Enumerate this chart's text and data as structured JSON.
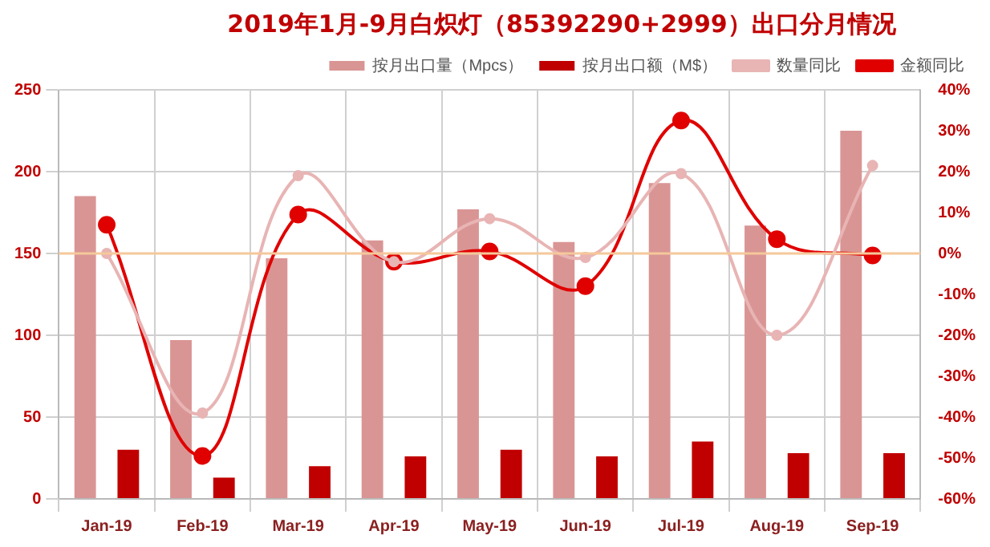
{
  "chart_data": {
    "type": "bar",
    "title": "2019年1月-9月白炽灯（85392290+2999）出口分月情况",
    "categories": [
      "Jan-19",
      "Feb-19",
      "Mar-19",
      "Apr-19",
      "May-19",
      "Jun-19",
      "Jul-19",
      "Aug-19",
      "Sep-19"
    ],
    "series": [
      {
        "name": "按月出口量（Mpcs）",
        "color": "#d99594",
        "values": [
          185,
          97,
          147,
          158,
          177,
          157,
          193,
          167,
          225
        ]
      },
      {
        "name": "按月出口额（M$）",
        "color": "#c00000",
        "values": [
          30,
          13,
          20,
          26,
          30,
          26,
          35,
          28,
          28
        ]
      },
      {
        "name": "数量同比",
        "type": "line",
        "axis": "y2",
        "color": "#e8b4b4",
        "values": [
          0,
          -39,
          19,
          -2,
          8.5,
          -1,
          19.5,
          -20,
          21.5
        ]
      },
      {
        "name": "金额同比",
        "type": "line",
        "axis": "y2",
        "color": "#e00000",
        "values": [
          7,
          -49.5,
          9.5,
          -2,
          0.5,
          -8,
          32.5,
          3.5,
          -0.5
        ]
      }
    ],
    "ylim": [
      0,
      250
    ],
    "yticks": [
      0,
      50,
      100,
      150,
      200,
      250
    ],
    "y2lim": [
      -60,
      40
    ],
    "y2ticks": [
      {
        "value": -60,
        "label": "-60%"
      },
      {
        "value": -50,
        "label": "-50%"
      },
      {
        "value": -40,
        "label": "-40%"
      },
      {
        "value": -30,
        "label": "-30%"
      },
      {
        "value": -20,
        "label": "-20%"
      },
      {
        "value": -10,
        "label": "-10%"
      },
      {
        "value": 0,
        "label": "0%"
      },
      {
        "value": 10,
        "label": "10%"
      },
      {
        "value": 20,
        "label": "20%"
      },
      {
        "value": 30,
        "label": "30%"
      },
      {
        "value": 40,
        "label": "40%"
      }
    ],
    "ref_lines": [
      {
        "axis": "y2",
        "value": 0,
        "color": "#f5c89a"
      }
    ],
    "grid": true,
    "legend": "top",
    "marker": "circle",
    "line_style": "solid"
  }
}
